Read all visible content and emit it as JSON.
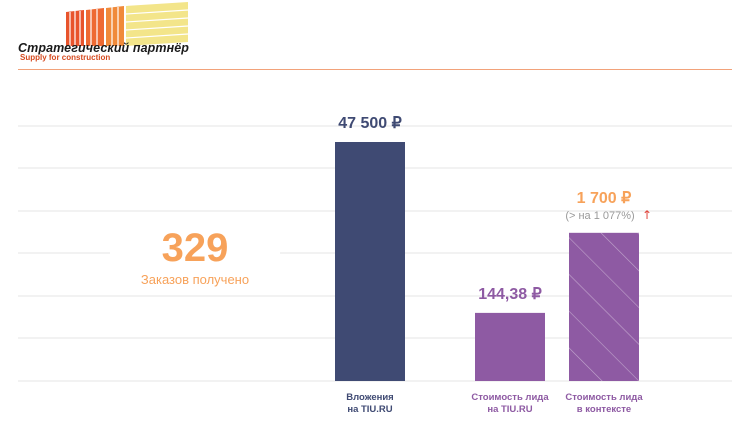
{
  "logo": {
    "title": "Стратегический партнёр",
    "subtitle": "Supply for construction"
  },
  "colors": {
    "bar_invest": "#3f4a73",
    "bar_lead": "#8e5aa3",
    "accent_orange": "#f7a25a",
    "arrow_red": "#e0443b",
    "label_purple": "#8e5aa3",
    "label_navy": "#3f4a73"
  },
  "kpi": {
    "value": "329",
    "label": "Заказов получено"
  },
  "chart_data": {
    "type": "bar",
    "categories": [
      "Вложения на TIU.RU",
      "Стоимость лида на TIU.RU",
      "Стоимость лида в контексте"
    ],
    "values": [
      47500,
      144.38,
      1700
    ],
    "value_labels": [
      "47 500 ₽",
      "144,38 ₽",
      "1 700 ₽"
    ],
    "category_lines": [
      [
        "Вложения",
        "на TIU.RU"
      ],
      [
        "Стоимость лида",
        "на TIU.RU"
      ],
      [
        "Стоимость лида",
        "в контексте"
      ]
    ],
    "annotation": "(> на 1 077%)",
    "annotation_arrow": "↑",
    "hatched": [
      false,
      false,
      true
    ],
    "bar_fractions": [
      1.0,
      0.285,
      0.62
    ],
    "xlabel": "",
    "ylabel": ""
  }
}
